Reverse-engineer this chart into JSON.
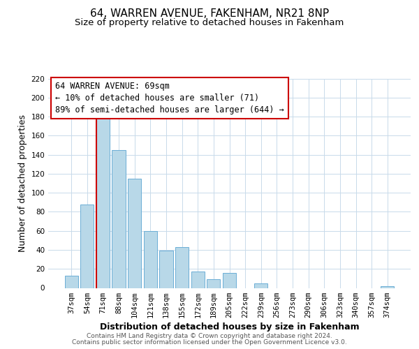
{
  "title": "64, WARREN AVENUE, FAKENHAM, NR21 8NP",
  "subtitle": "Size of property relative to detached houses in Fakenham",
  "xlabel": "Distribution of detached houses by size in Fakenham",
  "ylabel": "Number of detached properties",
  "bar_labels": [
    "37sqm",
    "54sqm",
    "71sqm",
    "88sqm",
    "104sqm",
    "121sqm",
    "138sqm",
    "155sqm",
    "172sqm",
    "189sqm",
    "205sqm",
    "222sqm",
    "239sqm",
    "256sqm",
    "273sqm",
    "290sqm",
    "306sqm",
    "323sqm",
    "340sqm",
    "357sqm",
    "374sqm"
  ],
  "bar_heights": [
    13,
    88,
    179,
    145,
    115,
    60,
    39,
    43,
    17,
    9,
    16,
    0,
    5,
    0,
    0,
    0,
    0,
    0,
    0,
    0,
    2
  ],
  "bar_color": "#b8d8e8",
  "bar_edge_color": "#6baed6",
  "vline_color": "#cc0000",
  "annotation_line1": "64 WARREN AVENUE: 69sqm",
  "annotation_line2": "← 10% of detached houses are smaller (71)",
  "annotation_line3": "89% of semi-detached houses are larger (644) →",
  "annotation_box_color": "#ffffff",
  "annotation_box_edge": "#cc0000",
  "ylim": [
    0,
    220
  ],
  "yticks": [
    0,
    20,
    40,
    60,
    80,
    100,
    120,
    140,
    160,
    180,
    200,
    220
  ],
  "footnote1": "Contains HM Land Registry data © Crown copyright and database right 2024.",
  "footnote2": "Contains public sector information licensed under the Open Government Licence v3.0.",
  "background_color": "#ffffff",
  "grid_color": "#c8daea",
  "title_fontsize": 11,
  "subtitle_fontsize": 9.5,
  "axis_label_fontsize": 9,
  "tick_fontsize": 7.5,
  "annotation_fontsize": 8.5,
  "footnote_fontsize": 6.5
}
